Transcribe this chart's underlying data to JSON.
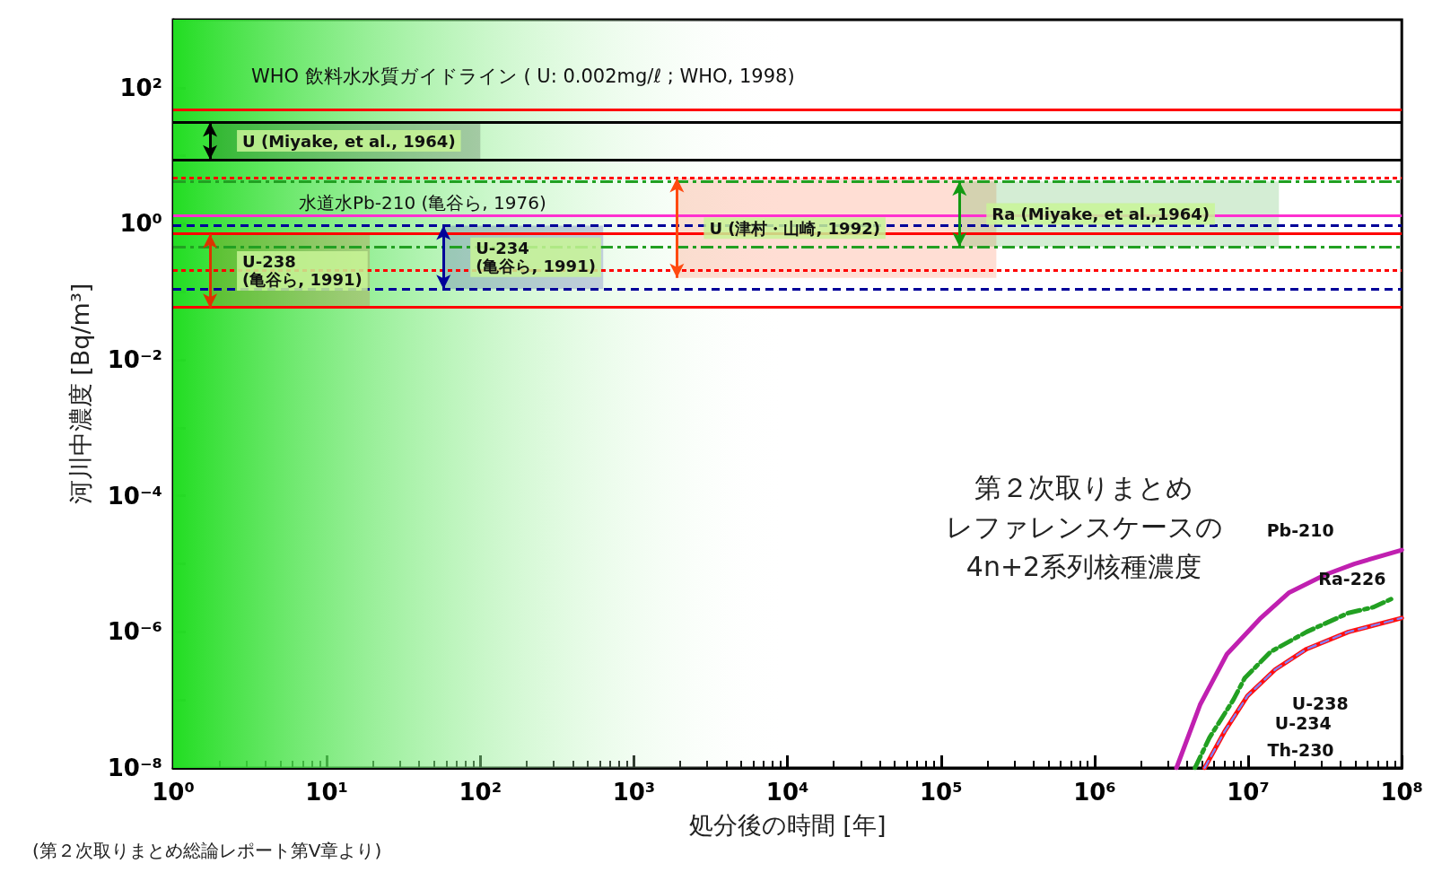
{
  "chart_data": {
    "type": "line",
    "xlabel": "処分後の時間 [年]",
    "ylabel": "河川中濃度 [Bq/m³]",
    "log": "xy",
    "xlim": [
      1,
      100000000
    ],
    "ylim": [
      1e-08,
      1000
    ],
    "xticks": [
      {
        "value": 1,
        "label": "10⁰"
      },
      {
        "value": 10,
        "label": "10¹"
      },
      {
        "value": 100,
        "label": "10²"
      },
      {
        "value": 1000,
        "label": "10³"
      },
      {
        "value": 10000,
        "label": "10⁴"
      },
      {
        "value": 100000,
        "label": "10⁵"
      },
      {
        "value": 1000000,
        "label": "10⁶"
      },
      {
        "value": 10000000,
        "label": "10⁷"
      },
      {
        "value": 100000000,
        "label": "10⁸"
      }
    ],
    "yticks": [
      {
        "value": 1e-08,
        "label": "10⁻⁸"
      },
      {
        "value": 1e-07,
        "label": null
      },
      {
        "value": 1e-06,
        "label": "10⁻⁶"
      },
      {
        "value": 1e-05,
        "label": null
      },
      {
        "value": 0.0001,
        "label": "10⁻⁴"
      },
      {
        "value": 0.001,
        "label": null
      },
      {
        "value": 0.01,
        "label": "10⁻²"
      },
      {
        "value": 0.1,
        "label": null
      },
      {
        "value": 1,
        "label": "10⁰"
      },
      {
        "value": 10,
        "label": null
      },
      {
        "value": 100,
        "label": "10²"
      },
      {
        "value": 1000,
        "label": null
      }
    ],
    "grid": false,
    "legend": false,
    "marker": "none",
    "series": [
      {
        "name": "Pb-210",
        "color": "#c020b0",
        "line_style": "solid",
        "x": [
          3410000,
          4860000,
          7260000,
          11900000,
          18500000,
          31600000,
          49000000,
          100000000
        ],
        "values": [
          1e-08,
          8.5e-08,
          4.7e-07,
          1.55e-06,
          3.8e-06,
          6.9e-06,
          1e-05,
          1.6e-05
        ]
      },
      {
        "name": "Ra-226",
        "color": "#22a022",
        "line_style": "dashdot",
        "x": [
          4500000,
          5600000,
          8000000,
          9500000,
          14000000,
          24000000,
          45000000,
          65000000,
          87000000
        ],
        "values": [
          1e-08,
          2.8e-08,
          1e-07,
          2.1e-07,
          5.1e-07,
          1e-06,
          1.9e-06,
          2.3e-06,
          3.1e-06
        ]
      },
      {
        "name": "Th-230",
        "color": "#ff1010",
        "line_style": "solid",
        "x": [
          5200000,
          7000000,
          9900000,
          15000000,
          24000000,
          45000000,
          100000000
        ],
        "values": [
          1e-08,
          3.4e-08,
          1.15e-07,
          2.8e-07,
          5.6e-07,
          1e-06,
          1.6e-06
        ]
      },
      {
        "name": "U-234",
        "color": "#8080ff",
        "line_style": "dashed",
        "x": [
          5200000,
          7000000,
          9900000,
          15000000,
          24000000,
          45000000,
          100000000
        ],
        "values": [
          1e-08,
          3.4e-08,
          1.15e-07,
          2.8e-07,
          5.6e-07,
          1e-06,
          1.6e-06
        ]
      },
      {
        "name": "U-238",
        "color": "#8080ff",
        "line_style": "dashed",
        "x": [
          5200000,
          7000000,
          9900000,
          15000000,
          24000000,
          45000000,
          100000000
        ],
        "values": [
          1e-08,
          3.4e-08,
          1.15e-07,
          2.8e-07,
          5.6e-07,
          1e-06,
          1.6e-06
        ]
      }
    ],
    "ref_lines": [
      {
        "axis": "y",
        "value": 48,
        "label": null,
        "color": "#ff0000",
        "line_style": "solid"
      },
      {
        "axis": "y",
        "value": 31,
        "label": null,
        "color": "#000000",
        "line_style": "solid"
      },
      {
        "axis": "y",
        "value": 8.8,
        "label": null,
        "color": "#000000",
        "line_style": "solid"
      },
      {
        "axis": "y",
        "value": 4.7,
        "label": null,
        "color": "#ff0000",
        "line_style": "dotted"
      },
      {
        "axis": "y",
        "value": 4.2,
        "label": null,
        "color": "#22a022",
        "line_style": "dashdot"
      },
      {
        "axis": "y",
        "value": 1.33,
        "label": "水道水Pb-210 (亀谷ら, 1976)",
        "color": "#ff30d0",
        "line_style": "solid"
      },
      {
        "axis": "y",
        "value": 0.94,
        "label": null,
        "color": "#000099",
        "line_style": "dashed"
      },
      {
        "axis": "y",
        "value": 0.71,
        "label": null,
        "color": "#ff0000",
        "line_style": "solid"
      },
      {
        "axis": "y",
        "value": 0.46,
        "label": null,
        "color": "#22a022",
        "line_style": "dashdot"
      },
      {
        "axis": "y",
        "value": 0.21,
        "label": null,
        "color": "#ff0000",
        "line_style": "dotted"
      },
      {
        "axis": "y",
        "value": 0.11,
        "label": null,
        "color": "#000099",
        "line_style": "dashed"
      },
      {
        "axis": "y",
        "value": 0.058,
        "label": null,
        "color": "#ff0000",
        "line_style": "solid"
      }
    ],
    "bands": [
      {
        "axis": "x",
        "from": 1,
        "to": 10000,
        "label": null,
        "color": "#22dd22"
      },
      {
        "axis": "y",
        "from": 8.8,
        "to": 31,
        "label": "U (Miyake, et al., 1964)",
        "color": "#000000"
      },
      {
        "axis": "y",
        "from": 0.058,
        "to": 0.71,
        "label": "U-238\n(亀谷ら, 1991)",
        "color": "#dd3300"
      },
      {
        "axis": "y",
        "from": 0.11,
        "to": 0.94,
        "label": "U-234\n(亀谷ら, 1991)",
        "color": "#000099"
      },
      {
        "axis": "y",
        "from": 0.16,
        "to": 4.7,
        "label": "U (津村・山崎, 1992)",
        "color": "#ff4a10"
      },
      {
        "axis": "y",
        "from": 0.46,
        "to": 4.2,
        "label": "Ra (Miyake, et al.,1964)",
        "color": "#119911"
      }
    ],
    "annotations": [
      "WHO 飲料水水質ガイドライン ( U: 0.002mg/ℓ ; WHO, 1998)",
      "第２次取りまとめ",
      "レファレンスケースの",
      "4n+2系列核種濃度",
      "(第２次取りまとめ総論レポート第V章より)"
    ]
  }
}
